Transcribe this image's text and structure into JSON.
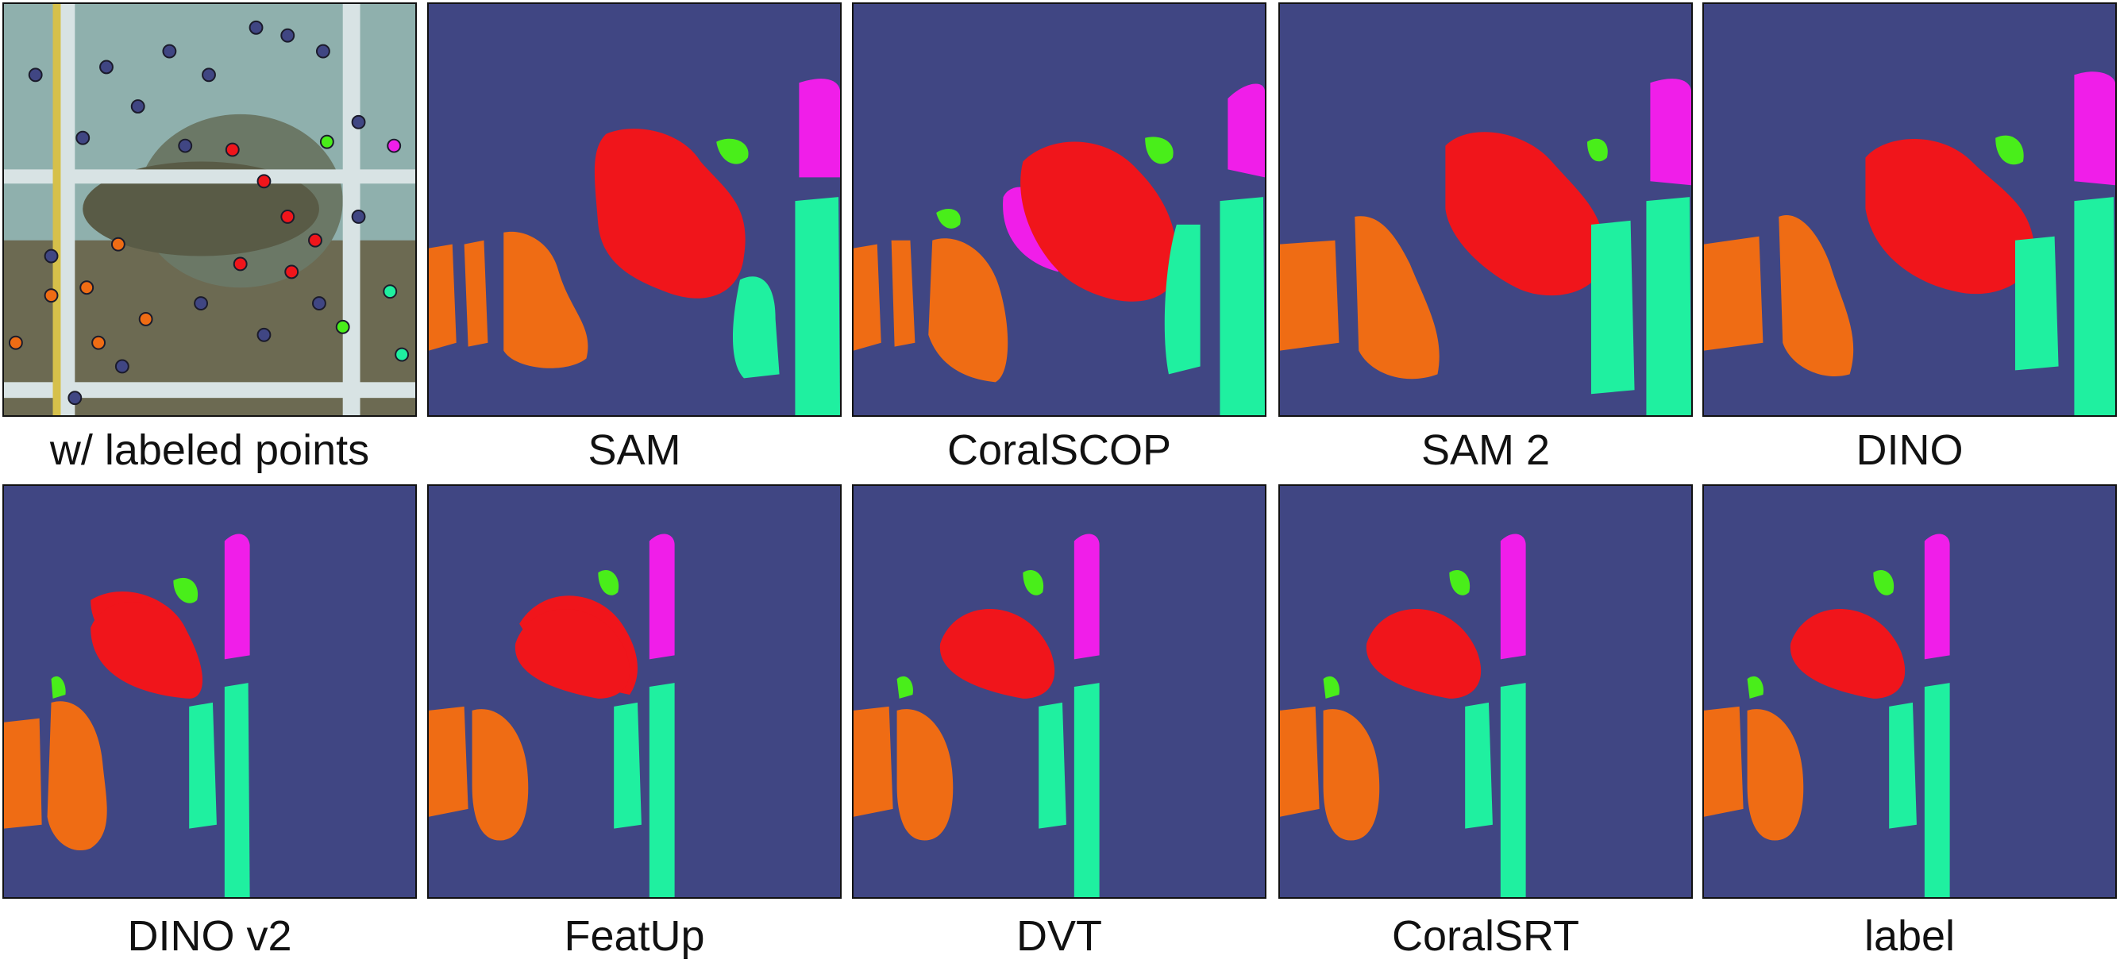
{
  "panels": [
    {
      "caption": "w/ labeled points",
      "kind": "photo"
    },
    {
      "caption": "SAM",
      "kind": "segmentation"
    },
    {
      "caption": "CoralSCOP",
      "kind": "segmentation"
    },
    {
      "caption": "SAM 2",
      "kind": "segmentation"
    },
    {
      "caption": "DINO",
      "kind": "segmentation"
    },
    {
      "caption": "DINO v2",
      "kind": "segmentation"
    },
    {
      "caption": "FeatUp",
      "kind": "segmentation"
    },
    {
      "caption": "DVT",
      "kind": "segmentation"
    },
    {
      "caption": "CoralSRT",
      "kind": "segmentation"
    },
    {
      "caption": "label",
      "kind": "segmentation"
    }
  ],
  "colors": {
    "background": "#404683",
    "red": "#f0151b",
    "orange": "#ef6c14",
    "green": "#49ee1a",
    "cyan": "#1ff0a0",
    "magenta": "#f01ee9"
  }
}
